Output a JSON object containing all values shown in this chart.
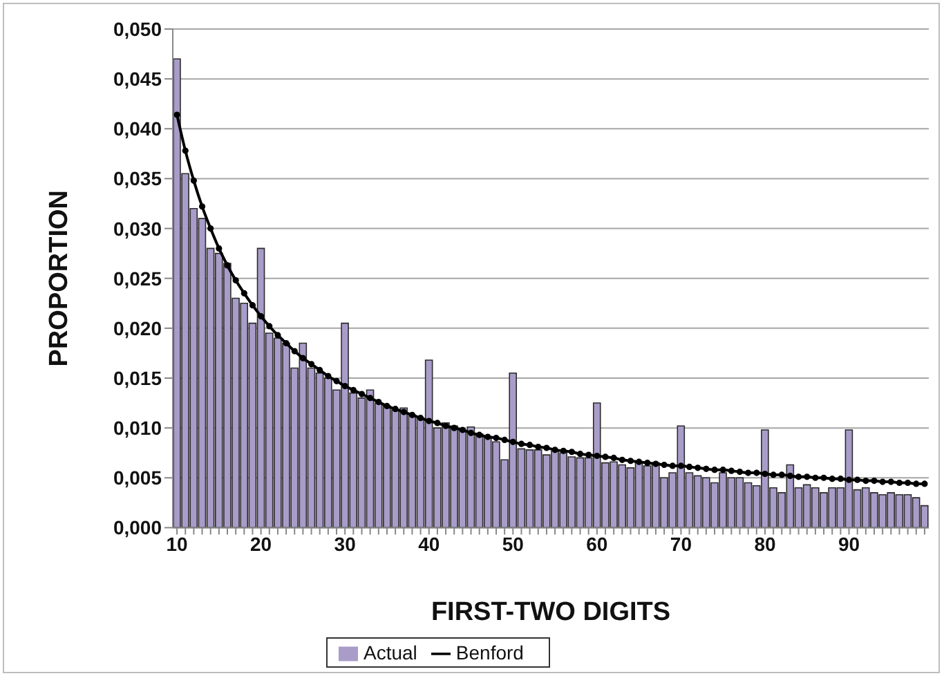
{
  "chart_data": {
    "type": "bar",
    "xlabel": "FIRST-TWO DIGITS",
    "ylabel": "PROPORTION",
    "categories": [
      "10",
      null,
      null,
      null,
      null,
      null,
      null,
      null,
      null,
      null,
      "20",
      null,
      null,
      null,
      null,
      null,
      null,
      null,
      null,
      null,
      "30",
      null,
      null,
      null,
      null,
      null,
      null,
      null,
      null,
      null,
      "40",
      null,
      null,
      null,
      null,
      null,
      null,
      null,
      null,
      null,
      "50",
      null,
      null,
      null,
      null,
      null,
      null,
      null,
      null,
      null,
      "60",
      null,
      null,
      null,
      null,
      null,
      null,
      null,
      null,
      null,
      "70",
      null,
      null,
      null,
      null,
      null,
      null,
      null,
      null,
      null,
      "80",
      null,
      null,
      null,
      null,
      null,
      null,
      null,
      null,
      null,
      "90",
      null,
      null,
      null,
      null,
      null,
      null,
      null,
      null,
      null
    ],
    "series": [
      {
        "name": "Actual",
        "color": "#a99cc9",
        "values": [
          0.047,
          0.0355,
          0.032,
          0.031,
          0.028,
          0.0275,
          0.0265,
          0.023,
          0.0225,
          0.0205,
          0.028,
          0.0195,
          0.019,
          0.0185,
          0.016,
          0.0185,
          0.016,
          0.0155,
          0.015,
          0.0138,
          0.0205,
          0.0135,
          0.013,
          0.0138,
          0.0125,
          0.0122,
          0.0118,
          0.012,
          0.0113,
          0.011,
          0.0168,
          0.01,
          0.0105,
          0.0102,
          0.0098,
          0.0101,
          0.0094,
          0.009,
          0.0086,
          0.0068,
          0.0155,
          0.0079,
          0.0078,
          0.0078,
          0.0073,
          0.0077,
          0.0075,
          0.0071,
          0.007,
          0.007,
          0.0125,
          0.0065,
          0.0066,
          0.0063,
          0.006,
          0.0065,
          0.0062,
          0.0065,
          0.005,
          0.0055,
          0.0102,
          0.0055,
          0.0052,
          0.005,
          0.0045,
          0.0055,
          0.005,
          0.005,
          0.0045,
          0.0042,
          0.0098,
          0.004,
          0.0035,
          0.0063,
          0.004,
          0.0043,
          0.004,
          0.0035,
          0.004,
          0.004,
          0.0098,
          0.0038,
          0.004,
          0.0035,
          0.0033,
          0.0035,
          0.0033,
          0.0033,
          0.003,
          0.0022
        ]
      },
      {
        "name": "Benford",
        "type": "line",
        "color": "#000000",
        "values": [
          0.0414,
          0.0378,
          0.0348,
          0.0322,
          0.03,
          0.028,
          0.0263,
          0.0248,
          0.0235,
          0.0223,
          0.0212,
          0.0202,
          0.0193,
          0.0185,
          0.0177,
          0.017,
          0.0164,
          0.0158,
          0.0152,
          0.0147,
          0.0142,
          0.0138,
          0.0134,
          0.013,
          0.0126,
          0.0122,
          0.0119,
          0.0116,
          0.0113,
          0.011,
          0.0107,
          0.0105,
          0.0102,
          0.01,
          0.0098,
          0.0095,
          0.0093,
          0.0091,
          0.009,
          0.0088,
          0.0086,
          0.0084,
          0.0083,
          0.0081,
          0.008,
          0.0078,
          0.0077,
          0.0076,
          0.0074,
          0.0073,
          0.0072,
          0.0071,
          0.007,
          0.0068,
          0.0067,
          0.0066,
          0.0065,
          0.0064,
          0.0063,
          0.0062,
          0.0062,
          0.0061,
          0.006,
          0.0059,
          0.0058,
          0.0058,
          0.0057,
          0.0056,
          0.0055,
          0.0055,
          0.0054,
          0.0053,
          0.0053,
          0.0052,
          0.0051,
          0.0051,
          0.005,
          0.005,
          0.0049,
          0.0049,
          0.0048,
          0.0048,
          0.0047,
          0.0047,
          0.0046,
          0.0046,
          0.0045,
          0.0045,
          0.0044,
          0.0044
        ]
      }
    ],
    "ylim": [
      0,
      0.05
    ],
    "yticks": [
      {
        "value": 0,
        "label": "0,000"
      },
      {
        "value": 0.005,
        "label": "0,005"
      },
      {
        "value": 0.01,
        "label": "0,010"
      },
      {
        "value": 0.015,
        "label": "0,015"
      },
      {
        "value": 0.02,
        "label": "0,020"
      },
      {
        "value": 0.025,
        "label": "0,025"
      },
      {
        "value": 0.03,
        "label": "0,030"
      },
      {
        "value": 0.035,
        "label": "0,035"
      },
      {
        "value": 0.04,
        "label": "0,040"
      },
      {
        "value": 0.045,
        "label": "0,045"
      },
      {
        "value": 0.05,
        "label": "0,050"
      }
    ],
    "grid": "y",
    "legend": "bottom",
    "marker": "circle",
    "line_style": "solid"
  }
}
